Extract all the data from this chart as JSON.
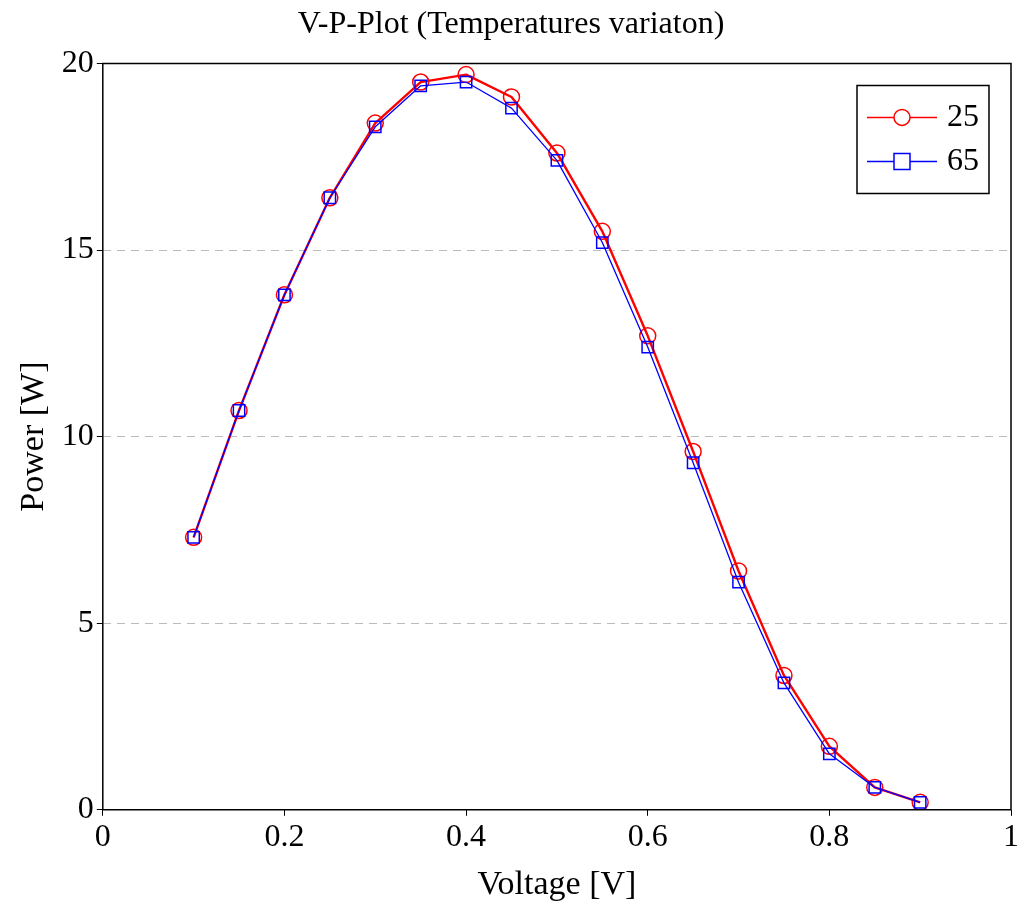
{
  "chart_data": {
    "type": "line",
    "title": "V-P-Plot (Temperatures variaton)",
    "xlabel": "Voltage [V]",
    "ylabel": "Power [W]",
    "x": [
      0.1,
      0.15,
      0.2,
      0.25,
      0.3,
      0.35,
      0.4,
      0.45,
      0.5,
      0.55,
      0.6,
      0.65,
      0.7,
      0.75,
      0.8,
      0.85,
      0.9
    ],
    "series": [
      {
        "name": "25",
        "color": "#ff0000",
        "marker": "circle",
        "values": [
          7.3,
          10.7,
          13.8,
          16.4,
          18.4,
          19.5,
          19.7,
          19.1,
          17.6,
          15.5,
          12.7,
          9.6,
          6.4,
          3.6,
          1.7,
          0.6,
          0.2
        ]
      },
      {
        "name": "65",
        "color": "#0000ff",
        "marker": "square",
        "values": [
          7.3,
          10.7,
          13.8,
          16.4,
          18.3,
          19.4,
          19.5,
          18.8,
          17.4,
          15.2,
          12.4,
          9.3,
          6.1,
          3.4,
          1.5,
          0.6,
          0.2
        ]
      }
    ],
    "xlim": [
      0,
      1
    ],
    "xticks": [
      0,
      0.2,
      0.4,
      0.6,
      0.8,
      1
    ],
    "ylim": [
      0,
      20
    ],
    "yticks": [
      0,
      5,
      10,
      15,
      20
    ],
    "grid": "y",
    "legend": "top right",
    "line_style": "solid"
  }
}
